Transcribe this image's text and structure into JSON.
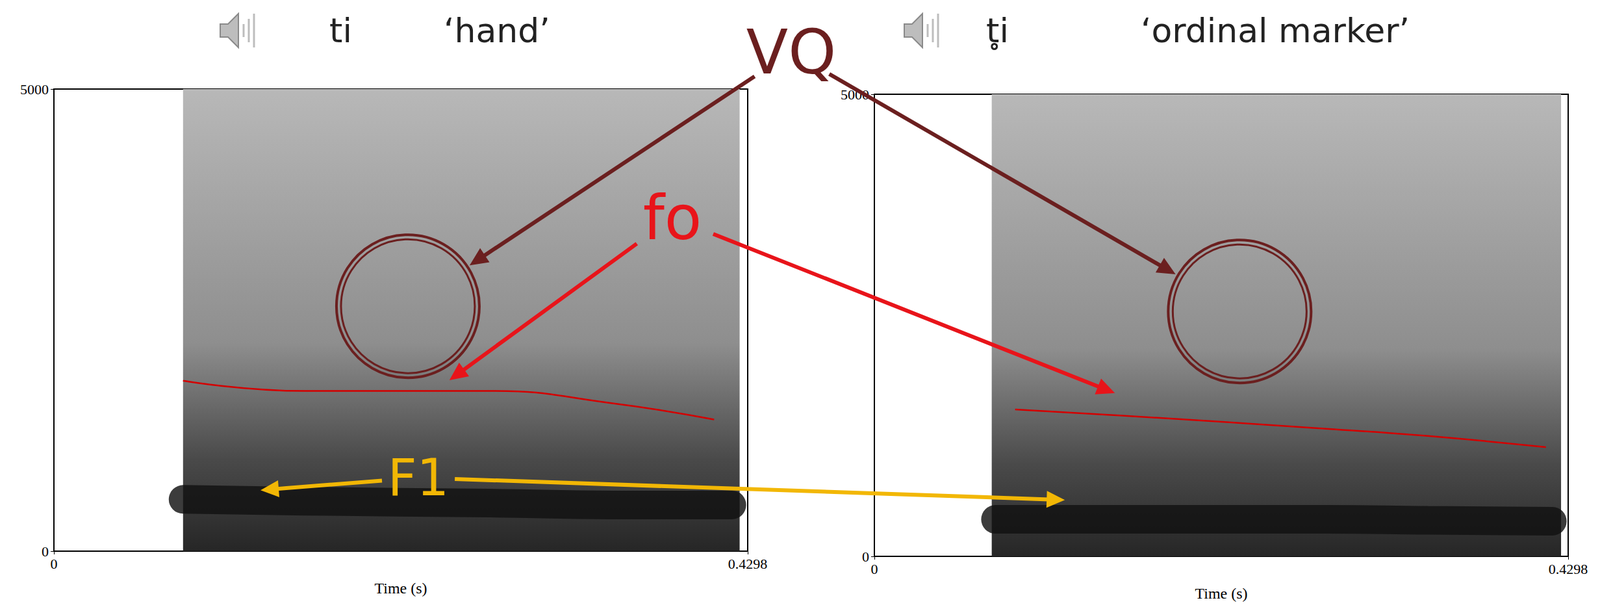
{
  "chart_data": [
    {
      "type": "line",
      "title": "ti",
      "subtitle": "‘hand’",
      "xlabel": "Time (s)",
      "xlim": [
        0,
        0.4298
      ],
      "xticks": [
        0,
        0.4298
      ],
      "ylim": [
        0,
        5000
      ],
      "yticks": [
        0,
        5000
      ],
      "grid": false,
      "sound": [
        0.08,
        0.4248
      ],
      "series": [
        {
          "name": "F1",
          "color": "#111111",
          "line_style": "band",
          "x": [
            0.08,
            0.156,
            0.27,
            0.346,
            0.42
          ],
          "values": [
            560,
            540,
            520,
            500,
            500
          ]
        },
        {
          "name": "fo",
          "color": "#d40000",
          "line_style": "solid",
          "x": [
            0.08,
            0.156,
            0.27,
            0.346,
            0.409
          ],
          "values": [
            1844,
            1733,
            1733,
            1600,
            1424
          ]
        }
      ]
    },
    {
      "type": "line",
      "title": "t̥i",
      "subtitle": "‘ordinal marker’",
      "xlabel": "Time (s)",
      "xlim": [
        0,
        0.4298
      ],
      "xticks": [
        0,
        0.4298
      ],
      "ylim": [
        0,
        5000
      ],
      "yticks": [
        0,
        5000
      ],
      "grid": false,
      "sound": [
        0.0727,
        0.4254
      ],
      "series": [
        {
          "name": "F1",
          "color": "#111111",
          "line_style": "band",
          "x": [
            0.075,
            0.156,
            0.28,
            0.343,
            0.42
          ],
          "values": [
            400,
            400,
            400,
            390,
            380
          ]
        },
        {
          "name": "fo",
          "color": "#d40000",
          "line_style": "solid",
          "x": [
            0.0872,
            0.1536,
            0.28,
            0.343,
            0.416
          ],
          "values": [
            1590,
            1523,
            1380,
            1302,
            1181
          ]
        }
      ]
    }
  ],
  "annotations": [
    {
      "text": "VQ",
      "color": "#6b1f1f",
      "marker": "circle",
      "points": [
        [
          0.2193,
          2650
        ],
        [
          0.2263,
          2650
        ]
      ]
    },
    {
      "text": "fo",
      "color": "#e8141a",
      "points": [
        [
          0.245,
          1850
        ],
        [
          0.149,
          1766
        ]
      ]
    },
    {
      "text": "F1",
      "color": "#f2b705",
      "points": [
        [
          0.128,
          660
        ],
        [
          0.118,
          610
        ]
      ]
    }
  ]
}
